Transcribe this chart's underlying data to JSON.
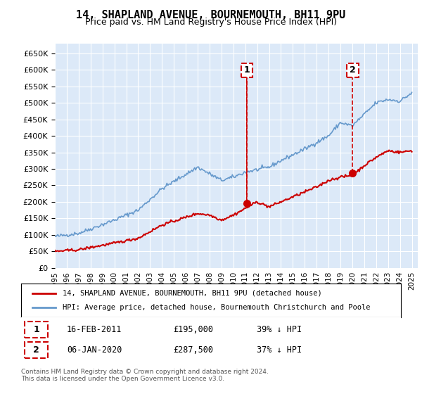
{
  "title": "14, SHAPLAND AVENUE, BOURNEMOUTH, BH11 9PU",
  "subtitle": "Price paid vs. HM Land Registry's House Price Index (HPI)",
  "ylim": [
    0,
    680000
  ],
  "yticks": [
    0,
    50000,
    100000,
    150000,
    200000,
    250000,
    300000,
    350000,
    400000,
    450000,
    500000,
    550000,
    600000,
    650000
  ],
  "xlim_start": 1995.0,
  "xlim_end": 2025.5,
  "background_color": "#dce9f8",
  "plot_bg_color": "#dce9f8",
  "grid_color": "#ffffff",
  "hpi_color": "#6699cc",
  "price_color": "#cc0000",
  "marker_color": "#cc0000",
  "annotation_box_color": "#cc0000",
  "sale1": {
    "date": 2011.12,
    "price": 195000,
    "label": "1"
  },
  "sale2": {
    "date": 2020.03,
    "price": 287500,
    "label": "2"
  },
  "legend_line1": "14, SHAPLAND AVENUE, BOURNEMOUTH, BH11 9PU (detached house)",
  "legend_line2": "HPI: Average price, detached house, Bournemouth Christchurch and Poole",
  "table_row1_num": "1",
  "table_row1_date": "16-FEB-2011",
  "table_row1_price": "£195,000",
  "table_row1_pct": "39% ↓ HPI",
  "table_row2_num": "2",
  "table_row2_date": "06-JAN-2020",
  "table_row2_price": "£287,500",
  "table_row2_pct": "37% ↓ HPI",
  "footer": "Contains HM Land Registry data © Crown copyright and database right 2024.\nThis data is licensed under the Open Government Licence v3.0.",
  "xticks": [
    1995,
    1996,
    1997,
    1998,
    1999,
    2000,
    2001,
    2002,
    2003,
    2004,
    2005,
    2006,
    2007,
    2008,
    2009,
    2010,
    2011,
    2012,
    2013,
    2014,
    2015,
    2016,
    2017,
    2018,
    2019,
    2020,
    2021,
    2022,
    2023,
    2024,
    2025
  ]
}
